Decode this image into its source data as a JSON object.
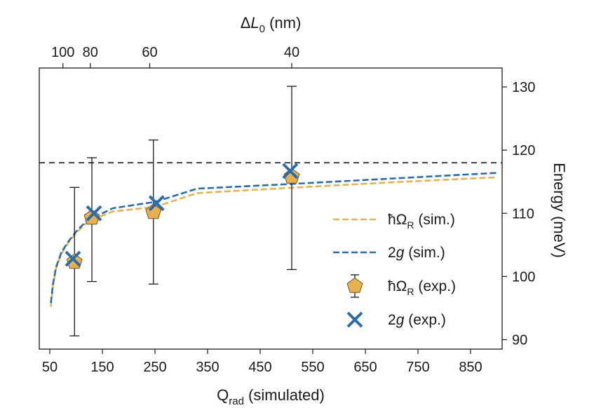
{
  "chart_data": {
    "type": "line",
    "x_axis": {
      "label": "Q",
      "label_sub": "rad",
      "label_suffix": " (simulated)",
      "range": [
        30,
        910
      ],
      "ticks": [
        50,
        150,
        250,
        350,
        450,
        550,
        650,
        750,
        850
      ]
    },
    "top_axis": {
      "label_prefix": "Δ",
      "label_italic": "L",
      "label_sub": "0",
      "label_suffix": " (nm)",
      "ticks": [
        {
          "label": "100",
          "q": 75
        },
        {
          "label": "80",
          "q": 127
        },
        {
          "label": "60",
          "q": 240
        },
        {
          "label": "40",
          "q": 510
        }
      ]
    },
    "y_axis": {
      "label": "Energy (meV)",
      "position": "right",
      "range": [
        88.5,
        133
      ],
      "ticks": [
        90,
        100,
        110,
        120,
        130
      ]
    },
    "reference_line": {
      "y": 118,
      "style": "dashed"
    },
    "series": [
      {
        "name": "ħΩR (sim.)",
        "legend_main": "ħΩ",
        "legend_sub": "R",
        "legend_suffix": " (sim.)",
        "kind": "line",
        "color": "#E8B14E",
        "x": [
          52,
          56,
          62,
          72,
          85,
          100,
          120,
          140,
          170,
          250,
          330,
          500,
          700,
          900
        ],
        "y": [
          95.2,
          98.5,
          101.3,
          103.6,
          105.3,
          106.9,
          108.5,
          109.3,
          110.3,
          111.0,
          113.2,
          114.0,
          114.9,
          115.7
        ]
      },
      {
        "name": "2g (sim.)",
        "legend_main": "2",
        "legend_italic": "g",
        "legend_suffix": " (sim.)",
        "kind": "line",
        "color": "#2B6DAA",
        "x": [
          52,
          56,
          62,
          72,
          85,
          100,
          120,
          140,
          170,
          250,
          330,
          500,
          700,
          900
        ],
        "y": [
          95.8,
          98.8,
          101.5,
          103.8,
          105.5,
          107.1,
          108.8,
          109.6,
          110.8,
          111.8,
          113.9,
          114.6,
          115.5,
          116.4
        ]
      },
      {
        "name": "ħΩR (exp.)",
        "legend_main": "ħΩ",
        "legend_sub": "R",
        "legend_suffix": " (exp.)",
        "kind": "pentagon",
        "color": "#E8B14E",
        "x": [
          97,
          130,
          247,
          510
        ],
        "y": [
          102.3,
          109.3,
          110.2,
          115.8
        ],
        "err_low": [
          90.6,
          99.2,
          98.8,
          101.1
        ],
        "err_high": [
          114.1,
          118.8,
          121.6,
          130.1
        ]
      },
      {
        "name": "2g (exp.)",
        "legend_main": "2",
        "legend_italic": "g",
        "legend_suffix": " (exp.)",
        "kind": "cross",
        "color": "#2B6DAA",
        "x": [
          94,
          134,
          253,
          507
        ],
        "y": [
          102.8,
          110.0,
          111.6,
          116.7
        ]
      }
    ]
  }
}
